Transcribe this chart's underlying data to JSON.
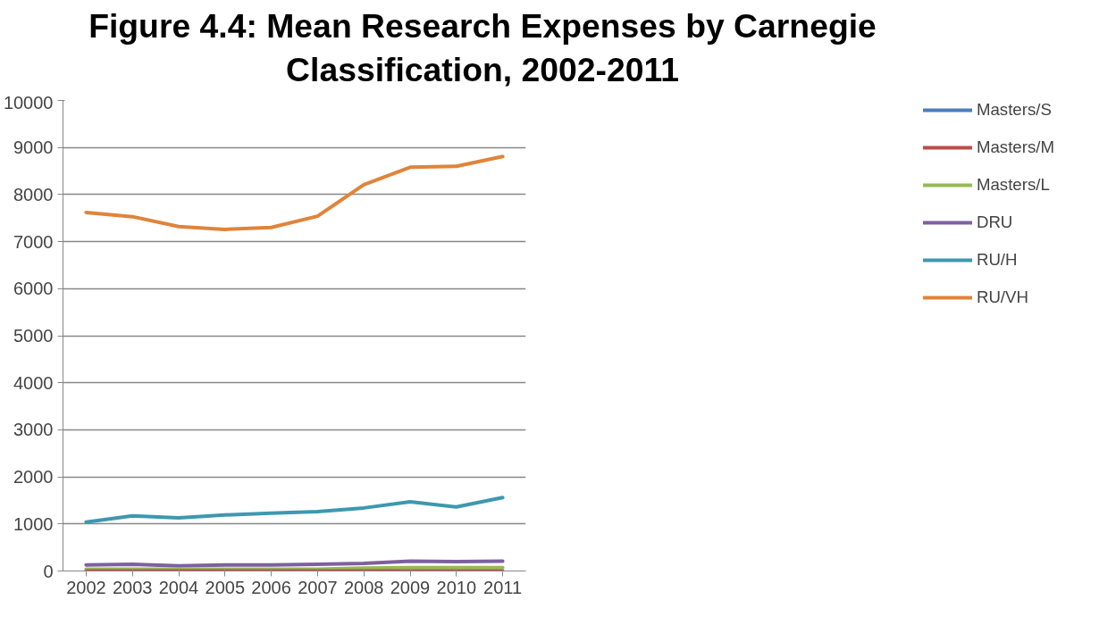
{
  "chart_data": {
    "type": "line",
    "title": "Figure 4.4:  Mean Research Expenses by Carnegie Classification, 2002-2011",
    "categories": [
      "2002",
      "2003",
      "2004",
      "2005",
      "2006",
      "2007",
      "2008",
      "2009",
      "2010",
      "2011"
    ],
    "ylim": [
      0,
      10000
    ],
    "yticks": [
      0,
      1000,
      2000,
      3000,
      4000,
      5000,
      6000,
      7000,
      8000,
      9000,
      10000
    ],
    "grid": "y",
    "legend": "right",
    "marker": "none",
    "line_style": "solid",
    "series": [
      {
        "name": "Masters/S",
        "color": "#4a7ebb",
        "values": [
          null,
          null,
          null,
          null,
          null,
          null,
          null,
          null,
          null,
          null
        ]
      },
      {
        "name": "Masters/M",
        "color": "#be4b48",
        "values": [
          0,
          0,
          0,
          0,
          0,
          0,
          0,
          0,
          0,
          0
        ]
      },
      {
        "name": "Masters/L",
        "color": "#98b954",
        "values": [
          40,
          40,
          40,
          40,
          40,
          40,
          60,
          70,
          70,
          70
        ]
      },
      {
        "name": "DRU",
        "color": "#7d60a0",
        "values": [
          130,
          140,
          110,
          130,
          130,
          140,
          160,
          210,
          200,
          210
        ]
      },
      {
        "name": "RU/H",
        "color": "#3d98b0",
        "values": [
          1040,
          1170,
          1130,
          1190,
          1230,
          1260,
          1340,
          1470,
          1360,
          1560
        ]
      },
      {
        "name": "RU/VH",
        "color": "#e0843a",
        "values": [
          7620,
          7530,
          7320,
          7260,
          7300,
          7540,
          8210,
          8580,
          8600,
          8810
        ]
      }
    ]
  }
}
